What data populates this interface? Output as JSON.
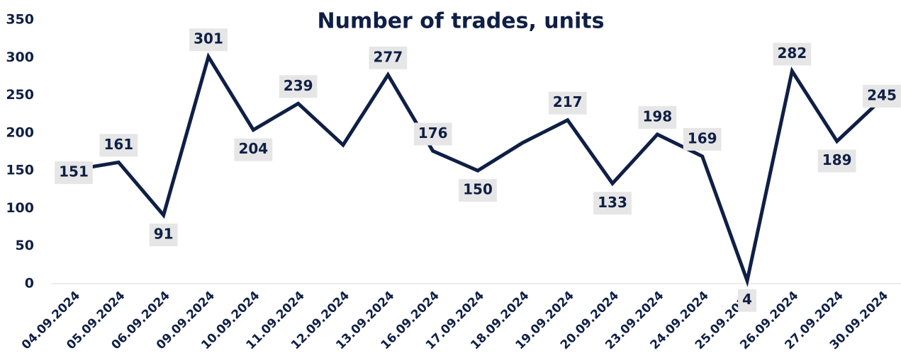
{
  "chart_data": {
    "type": "line",
    "title": "Number of trades, units",
    "categories": [
      "04.09.2024",
      "05.09.2024",
      "06.09.2024",
      "09.09.2024",
      "10.09.2024",
      "11.09.2024",
      "12.09.2024",
      "13.09.2024",
      "16.09.2024",
      "17.09.2024",
      "18.09.2024",
      "19.09.2024",
      "20.09.2024",
      "23.09.2024",
      "24.09.2024",
      "25.09.2024",
      "26.09.2024",
      "27.09.2024",
      "30.09.2024"
    ],
    "series": [
      {
        "name": "Number of trades",
        "color": "#0f1f45",
        "values": [
          151,
          161,
          91,
          301,
          204,
          239,
          184,
          277,
          176,
          150,
          187,
          217,
          133,
          198,
          169,
          4,
          282,
          189,
          245
        ],
        "value_labels": [
          151,
          161,
          91,
          301,
          204,
          239,
          null,
          277,
          176,
          150,
          null,
          217,
          133,
          198,
          169,
          4,
          282,
          189,
          245
        ]
      }
    ],
    "ylim": [
      0,
      350
    ],
    "yticks": [
      0,
      50,
      100,
      150,
      200,
      250,
      300,
      350
    ],
    "grid": false
  }
}
